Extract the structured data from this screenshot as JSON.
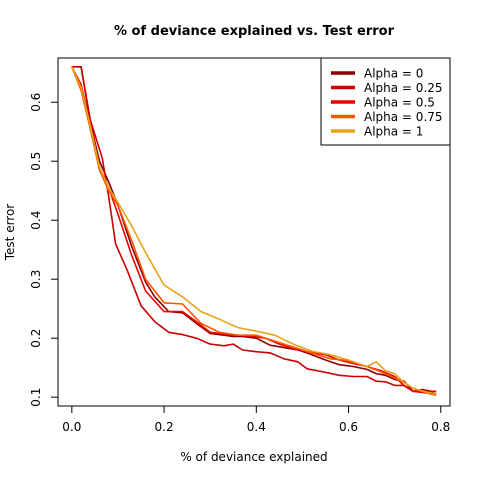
{
  "chart_data": {
    "type": "line",
    "title": "% of deviance explained vs. Test error",
    "xlabel": "% of deviance explained",
    "ylabel": "Test error",
    "xlim": [
      -0.03,
      0.82
    ],
    "ylim": [
      0.085,
      0.675
    ],
    "xticks": [
      0.0,
      0.2,
      0.4,
      0.6,
      0.8
    ],
    "xtick_labels": [
      "0.0",
      "0.2",
      "0.4",
      "0.6",
      "0.8"
    ],
    "yticks": [
      0.1,
      0.2,
      0.3,
      0.4,
      0.5,
      0.6
    ],
    "ytick_labels": [
      "0.1",
      "0.2",
      "0.3",
      "0.4",
      "0.5",
      "0.6"
    ],
    "grid": false,
    "legend_position": "top-right",
    "series": [
      {
        "name": "Alpha = 0",
        "color": "#8b0000",
        "x": [
          0.0,
          0.02,
          0.04,
          0.06,
          0.08,
          0.1,
          0.13,
          0.16,
          0.18,
          0.21,
          0.24,
          0.27,
          0.3,
          0.33,
          0.35,
          0.37,
          0.4,
          0.43,
          0.46,
          0.49,
          0.51,
          0.55,
          0.58,
          0.61,
          0.64,
          0.66,
          0.68,
          0.7,
          0.72,
          0.74,
          0.76,
          0.78,
          0.79
        ],
        "y": [
          0.66,
          0.66,
          0.565,
          0.5,
          0.465,
          0.425,
          0.355,
          0.295,
          0.27,
          0.245,
          0.243,
          0.225,
          0.208,
          0.205,
          0.203,
          0.203,
          0.2,
          0.188,
          0.184,
          0.18,
          0.175,
          0.163,
          0.155,
          0.152,
          0.147,
          0.14,
          0.137,
          0.13,
          0.127,
          0.11,
          0.11,
          0.108,
          0.105
        ]
      },
      {
        "name": "Alpha = 0.25",
        "color": "#cc0000",
        "x": [
          0.0,
          0.02,
          0.04,
          0.066,
          0.08,
          0.095,
          0.12,
          0.15,
          0.18,
          0.21,
          0.24,
          0.27,
          0.3,
          0.33,
          0.35,
          0.37,
          0.4,
          0.43,
          0.46,
          0.49,
          0.51,
          0.55,
          0.58,
          0.61,
          0.64,
          0.66,
          0.68,
          0.7,
          0.72,
          0.74,
          0.76,
          0.78,
          0.79
        ],
        "y": [
          0.66,
          0.66,
          0.57,
          0.505,
          0.44,
          0.36,
          0.315,
          0.255,
          0.228,
          0.21,
          0.206,
          0.2,
          0.19,
          0.187,
          0.19,
          0.18,
          0.177,
          0.175,
          0.165,
          0.16,
          0.148,
          0.142,
          0.137,
          0.135,
          0.135,
          0.127,
          0.126,
          0.12,
          0.12,
          0.11,
          0.113,
          0.11,
          0.11
        ]
      },
      {
        "name": "Alpha = 0.5",
        "color": "#ee0000",
        "x": [
          0.0,
          0.02,
          0.04,
          0.06,
          0.08,
          0.1,
          0.13,
          0.16,
          0.2,
          0.24,
          0.27,
          0.3,
          0.33,
          0.36,
          0.39,
          0.42,
          0.45,
          0.48,
          0.51,
          0.55,
          0.58,
          0.61,
          0.64,
          0.67,
          0.7,
          0.72,
          0.74,
          0.76,
          0.78,
          0.79
        ],
        "y": [
          0.66,
          0.63,
          0.56,
          0.49,
          0.455,
          0.41,
          0.34,
          0.28,
          0.245,
          0.245,
          0.228,
          0.21,
          0.207,
          0.205,
          0.203,
          0.2,
          0.19,
          0.182,
          0.177,
          0.172,
          0.163,
          0.157,
          0.152,
          0.145,
          0.135,
          0.12,
          0.11,
          0.108,
          0.106,
          0.106
        ]
      },
      {
        "name": "Alpha = 0.75",
        "color": "#ff5500",
        "x": [
          0.0,
          0.02,
          0.04,
          0.06,
          0.08,
          0.1,
          0.13,
          0.16,
          0.2,
          0.24,
          0.28,
          0.32,
          0.36,
          0.4,
          0.44,
          0.48,
          0.52,
          0.56,
          0.6,
          0.64,
          0.68,
          0.72,
          0.74,
          0.76,
          0.78,
          0.79
        ],
        "y": [
          0.66,
          0.62,
          0.555,
          0.485,
          0.45,
          0.425,
          0.365,
          0.3,
          0.26,
          0.258,
          0.225,
          0.21,
          0.205,
          0.205,
          0.195,
          0.185,
          0.175,
          0.165,
          0.162,
          0.152,
          0.14,
          0.125,
          0.115,
          0.11,
          0.105,
          0.103
        ]
      },
      {
        "name": "Alpha = 1",
        "color": "#e8a317",
        "x": [
          0.0,
          0.02,
          0.04,
          0.06,
          0.08,
          0.1,
          0.13,
          0.16,
          0.2,
          0.24,
          0.28,
          0.32,
          0.36,
          0.4,
          0.44,
          0.48,
          0.52,
          0.56,
          0.6,
          0.64,
          0.66,
          0.68,
          0.7,
          0.72,
          0.74,
          0.76,
          0.78,
          0.79
        ],
        "y": [
          0.66,
          0.625,
          0.56,
          0.49,
          0.455,
          0.43,
          0.39,
          0.345,
          0.29,
          0.27,
          0.245,
          0.232,
          0.218,
          0.212,
          0.205,
          0.19,
          0.178,
          0.172,
          0.163,
          0.152,
          0.16,
          0.145,
          0.14,
          0.125,
          0.115,
          0.11,
          0.107,
          0.105
        ]
      }
    ]
  }
}
